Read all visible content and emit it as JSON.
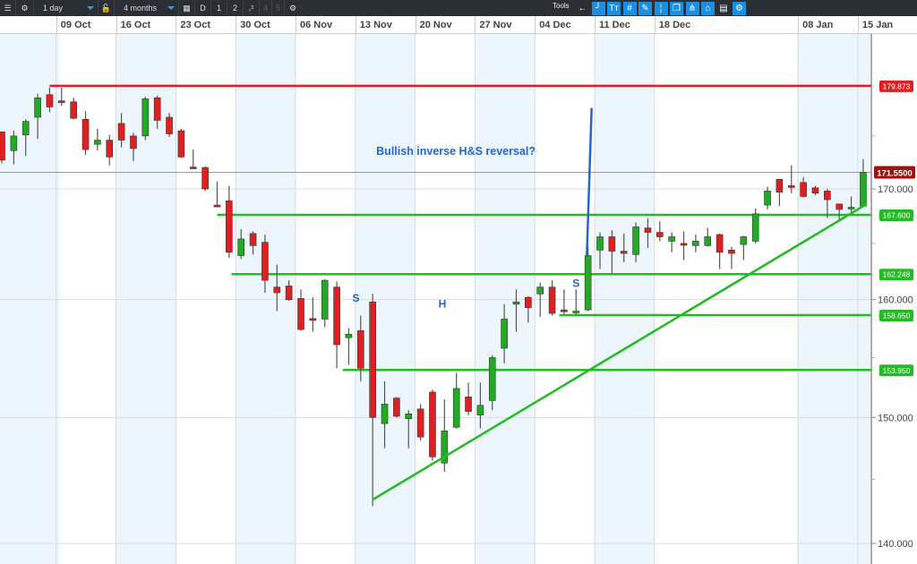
{
  "toolbar": {
    "interval": "1 day",
    "range": "4 months",
    "d_label": "D",
    "b1": "1",
    "b2": "2",
    "b3": "3",
    "b4": "4",
    "b5": "5",
    "tools_label": "Tools",
    "tools": [
      "back-arrow-icon",
      "curve-icon",
      "text-icon",
      "crosshair-icon",
      "pencil-icon",
      "candle-icon",
      "layers-icon",
      "fork-icon",
      "tag-icon",
      "print-icon",
      "settings-icon"
    ]
  },
  "date_labels": [
    {
      "label": "09 Oct",
      "index": 5
    },
    {
      "label": "16 Oct",
      "index": 10
    },
    {
      "label": "23 Oct",
      "index": 15
    },
    {
      "label": "30 Oct",
      "index": 20
    },
    {
      "label": "06 Nov",
      "index": 25
    },
    {
      "label": "13 Nov",
      "index": 30
    },
    {
      "label": "20 Nov",
      "index": 35
    },
    {
      "label": "27 Nov",
      "index": 40
    },
    {
      "label": "04 Dec",
      "index": 45
    },
    {
      "label": "11 Dec",
      "index": 50
    },
    {
      "label": "18 Dec",
      "index": 55
    },
    {
      "label": "08 Jan",
      "index": 67
    },
    {
      "label": "15 Jan",
      "index": 72
    }
  ],
  "colors": {
    "up": "#22aa22",
    "down": "#e02020",
    "resistance": "#e02020",
    "support": "#22bb22",
    "annotation": "#2266cc",
    "current": "#a01010"
  },
  "chart_data": {
    "type": "candlestick",
    "y_scale": "log",
    "ylim": [
      136,
      184
    ],
    "y_ticks": [
      "170.000",
      "160.000",
      "150.000",
      "140.000"
    ],
    "current_price": "171.5500",
    "candles": [
      [
        175.4,
        175.4,
        172.4,
        172.7
      ],
      [
        173.6,
        175.5,
        172.3,
        175.0
      ],
      [
        175.1,
        176.6,
        173.1,
        176.4
      ],
      [
        176.8,
        179.1,
        174.7,
        178.7
      ],
      [
        179.0,
        179.7,
        177.3,
        177.8
      ],
      [
        178.4,
        179.7,
        177.9,
        178.3
      ],
      [
        178.3,
        178.7,
        176.6,
        176.7
      ],
      [
        176.6,
        177.4,
        173.2,
        173.7
      ],
      [
        174.2,
        175.7,
        173.6,
        174.6
      ],
      [
        174.6,
        175.1,
        172.2,
        173.0
      ],
      [
        176.2,
        177.2,
        173.9,
        174.6
      ],
      [
        175.0,
        175.3,
        172.6,
        173.8
      ],
      [
        175.0,
        178.8,
        174.6,
        178.6
      ],
      [
        178.7,
        178.9,
        175.7,
        176.5
      ],
      [
        176.8,
        177.2,
        174.9,
        175.2
      ],
      [
        175.5,
        175.7,
        172.9,
        173.0
      ],
      [
        172.05,
        173.7,
        171.9,
        171.95
      ],
      [
        172.0,
        172.1,
        169.8,
        170.0
      ],
      [
        168.5,
        170.7,
        168.3,
        168.4
      ],
      [
        168.9,
        170.3,
        163.7,
        164.2
      ],
      [
        163.9,
        166.3,
        163.6,
        165.4
      ],
      [
        165.9,
        166.1,
        164.0,
        164.8
      ],
      [
        165.1,
        165.8,
        160.6,
        161.7
      ],
      [
        161.1,
        163.1,
        159.0,
        160.6
      ],
      [
        161.2,
        161.7,
        159.9,
        160.0
      ],
      [
        160.1,
        160.9,
        157.3,
        157.4
      ],
      [
        158.35,
        160.2,
        157.2,
        158.25
      ],
      [
        158.3,
        161.8,
        157.6,
        161.7
      ],
      [
        161.1,
        161.6,
        154.1,
        156.1
      ],
      [
        156.7,
        157.5,
        154.4,
        157.0
      ],
      [
        157.3,
        158.6,
        153.0,
        154.1
      ],
      [
        159.8,
        160.5,
        142.9,
        150.0
      ],
      [
        149.5,
        153.0,
        147.5,
        151.1
      ],
      [
        151.6,
        151.7,
        150.0,
        150.1
      ],
      [
        149.9,
        150.6,
        147.5,
        150.3
      ],
      [
        150.7,
        151.1,
        148.1,
        148.4
      ],
      [
        152.1,
        152.3,
        146.5,
        146.8
      ],
      [
        146.3,
        151.5,
        145.6,
        148.9
      ],
      [
        149.2,
        153.7,
        149.1,
        152.4
      ],
      [
        151.7,
        152.9,
        150.2,
        150.5
      ],
      [
        150.2,
        152.9,
        149.1,
        151.0
      ],
      [
        151.4,
        155.2,
        150.6,
        155.0
      ],
      [
        155.8,
        159.6,
        154.5,
        158.3
      ],
      [
        159.6,
        160.9,
        157.2,
        159.8
      ],
      [
        160.2,
        160.3,
        158.0,
        159.3
      ],
      [
        160.5,
        161.5,
        158.5,
        161.1
      ],
      [
        161.1,
        161.7,
        158.6,
        158.8
      ],
      [
        159.1,
        160.9,
        158.7,
        159.0
      ],
      [
        158.9,
        160.9,
        158.7,
        159.0
      ],
      [
        159.1,
        164.7,
        159.0,
        163.9
      ],
      [
        164.4,
        166.0,
        162.7,
        165.6
      ],
      [
        165.6,
        166.2,
        162.3,
        164.3
      ],
      [
        164.3,
        165.9,
        163.3,
        164.1
      ],
      [
        164.0,
        166.9,
        163.3,
        166.5
      ],
      [
        166.4,
        167.3,
        164.6,
        166.0
      ],
      [
        166.0,
        167.0,
        165.2,
        165.6
      ],
      [
        165.2,
        166.0,
        164.2,
        165.6
      ],
      [
        165.0,
        166.1,
        163.5,
        164.95
      ],
      [
        164.8,
        165.8,
        164.2,
        165.2
      ],
      [
        164.8,
        166.4,
        164.7,
        165.6
      ],
      [
        165.8,
        165.9,
        162.7,
        164.2
      ],
      [
        164.4,
        164.7,
        162.7,
        164.1
      ],
      [
        164.9,
        165.7,
        163.5,
        165.6
      ],
      [
        165.2,
        168.2,
        165.0,
        167.7
      ],
      [
        168.5,
        170.2,
        168.1,
        169.8
      ],
      [
        170.9,
        170.9,
        168.4,
        169.7
      ],
      [
        170.3,
        172.2,
        169.6,
        170.2
      ],
      [
        170.6,
        171.1,
        169.2,
        169.3
      ],
      [
        170.1,
        170.3,
        169.4,
        169.6
      ],
      [
        169.8,
        170.0,
        167.3,
        169.0
      ],
      [
        168.6,
        168.6,
        167.1,
        168.1
      ],
      [
        168.2,
        169.3,
        167.8,
        168.3
      ],
      [
        168.4,
        172.8,
        168.4,
        171.55
      ]
    ],
    "levels": [
      {
        "label": "179.873",
        "value": 179.873,
        "from": 4,
        "kind": "resistance"
      },
      {
        "label": "167.600",
        "value": 167.6,
        "from": 18,
        "kind": "support"
      },
      {
        "label": "162.248",
        "value": 162.248,
        "from": 19.2,
        "kind": "support"
      },
      {
        "label": "158.650",
        "value": 158.65,
        "from": 46.6,
        "kind": "support"
      },
      {
        "label": "153.950",
        "value": 153.95,
        "from": 28.5,
        "kind": "support"
      }
    ],
    "trendline": {
      "from": [
        31,
        143.4
      ],
      "to": [
        72.3,
        168.6
      ]
    },
    "arrow_line": {
      "from": [
        48.9,
        163.9
      ],
      "to": [
        49.3,
        177.7
      ]
    },
    "annotations": [
      {
        "text": "Bullish inverse H&S reversal?",
        "index": 31.3,
        "value": 173.2,
        "kind": "title"
      },
      {
        "text": "S",
        "index": 29.3,
        "value": 159.8
      },
      {
        "text": "H",
        "index": 36.5,
        "value": 159.3
      },
      {
        "text": "S",
        "index": 47.7,
        "value": 161.1
      }
    ]
  }
}
